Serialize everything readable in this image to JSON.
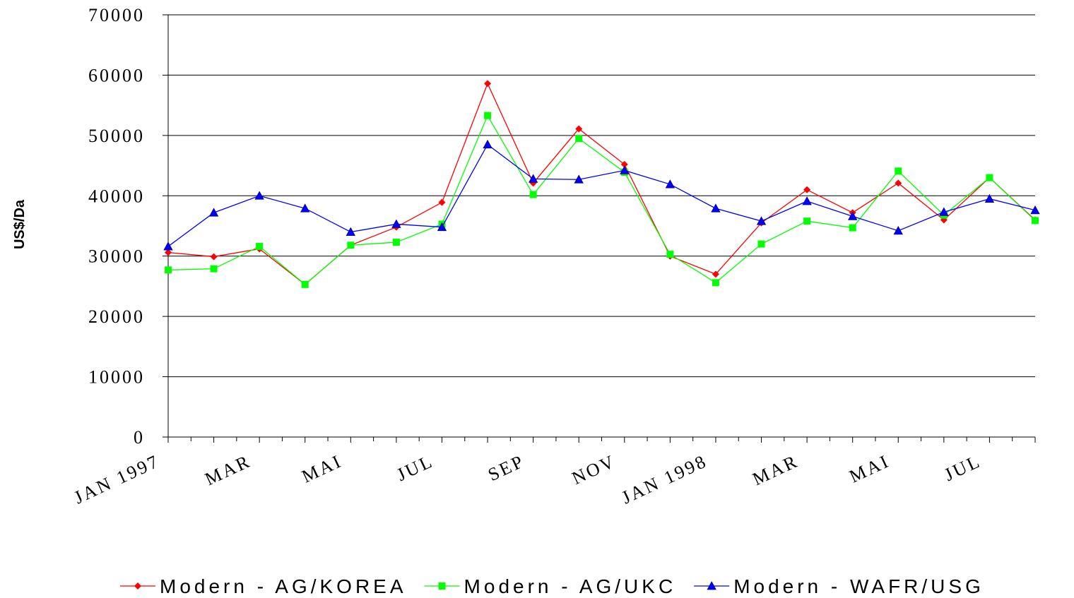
{
  "chart_data": {
    "type": "line",
    "y_label": "US$/Da",
    "categories": [
      "JAN 1997",
      null,
      "MAR",
      null,
      "MAI",
      null,
      "JUL",
      null,
      "SEP",
      null,
      "NOV",
      null,
      "JAN 1998",
      null,
      "MAR",
      null,
      "MAI",
      null,
      "JUL",
      null
    ],
    "series": [
      {
        "name": "Modern - AG/KOREA",
        "color": "#ff0000",
        "marker": "diamond",
        "values": [
          30600,
          29900,
          31200,
          25300,
          31800,
          34800,
          38900,
          58600,
          42100,
          51100,
          45200,
          30000,
          27000,
          35500,
          41000,
          37200,
          42100,
          36000,
          43000,
          36000
        ]
      },
      {
        "name": "Modern - AG/UKC",
        "color": "#00ff00",
        "marker": "square",
        "values": [
          27700,
          27900,
          31600,
          25300,
          31800,
          32300,
          35300,
          53300,
          40200,
          49500,
          43900,
          30300,
          25600,
          32000,
          35800,
          34700,
          44100,
          36800,
          43000,
          35900
        ]
      },
      {
        "name": "Modern - WAFR/USG",
        "color": "#0000ff",
        "marker": "triangle",
        "values": [
          31600,
          37200,
          40000,
          37900,
          34000,
          35300,
          34800,
          48500,
          42800,
          42700,
          44200,
          41900,
          37900,
          35800,
          39100,
          36600,
          34200,
          37300,
          39500,
          37600
        ]
      }
    ],
    "ylim": [
      0,
      70000
    ],
    "yticks": [
      0,
      10000,
      20000,
      30000,
      40000,
      50000,
      60000,
      70000
    ],
    "grid": true,
    "legend": "bottom"
  }
}
